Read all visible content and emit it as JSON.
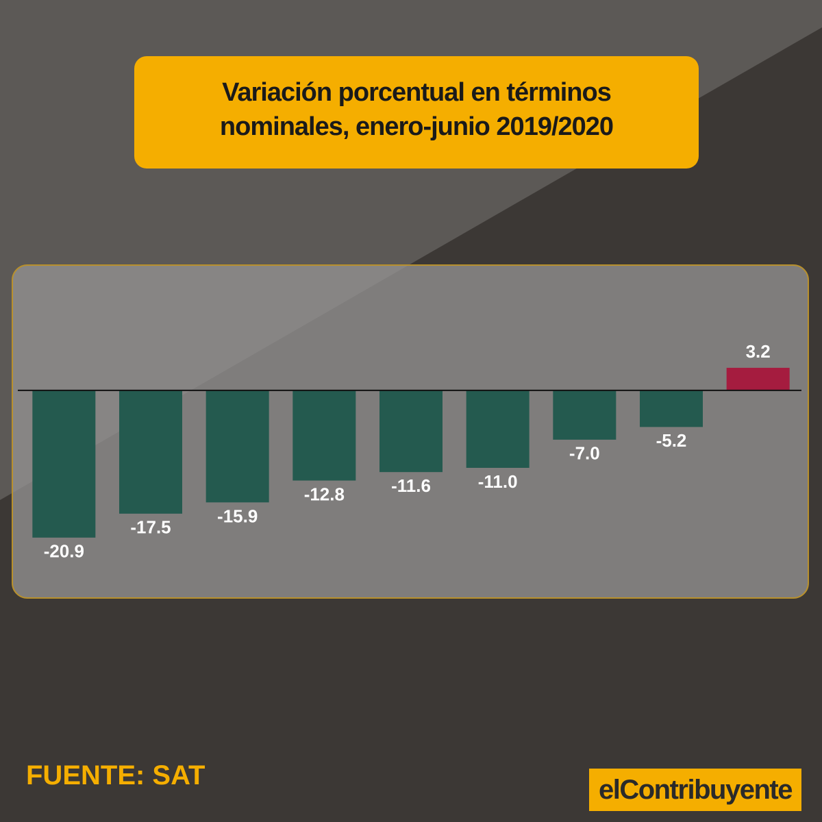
{
  "chart_data": {
    "type": "bar",
    "title": "Variación porcentual en términos nominales, enero-junio 2019/2020",
    "categories": [
      null,
      null,
      null,
      null,
      null,
      null,
      null,
      null,
      null
    ],
    "values": [
      -20.9,
      -17.5,
      -15.9,
      -12.8,
      -11.6,
      -11.0,
      -7.0,
      -5.2,
      3.2
    ],
    "value_labels": [
      "-20.9",
      "-17.5",
      "-15.9",
      "-12.8",
      "-11.6",
      "-11.0",
      "-7.0",
      "-5.2",
      "3.2"
    ],
    "colors": [
      "#245a4f",
      "#245a4f",
      "#245a4f",
      "#245a4f",
      "#245a4f",
      "#245a4f",
      "#245a4f",
      "#245a4f",
      "#a51c3f"
    ],
    "ylim": [
      -25,
      10
    ],
    "source": "FUENTE: SAT",
    "logo": "elContribuyente"
  }
}
